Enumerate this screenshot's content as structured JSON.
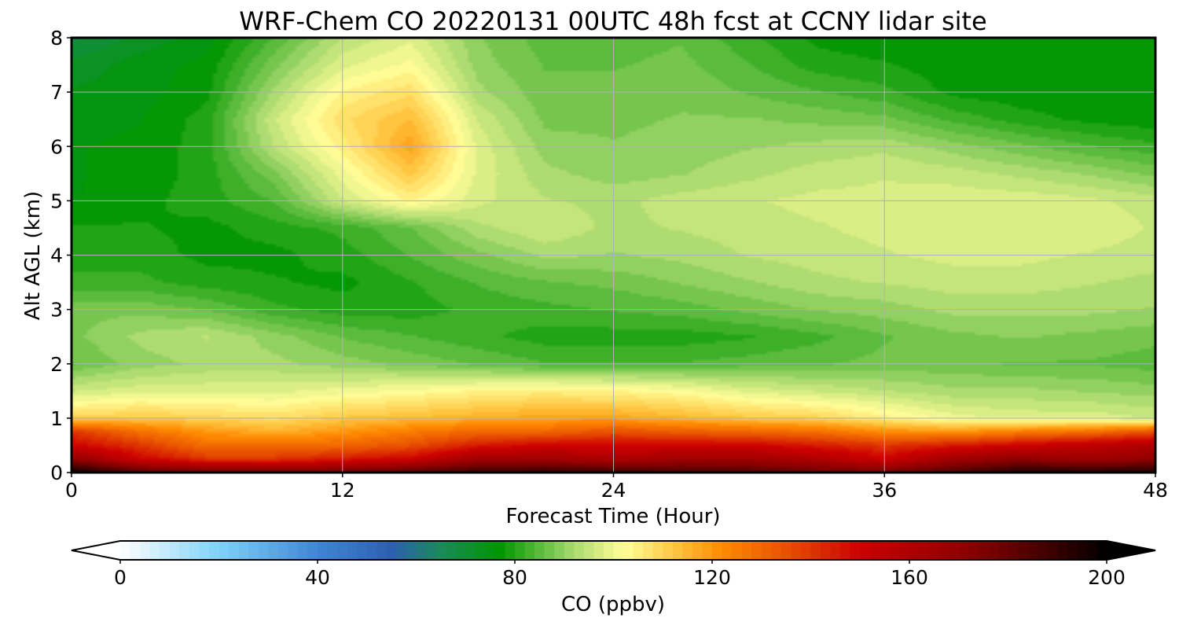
{
  "chart_data": {
    "type": "heatmap",
    "title": "WRF-Chem CO  20220131 00UTC 48h fcst at CCNY lidar site",
    "xlabel": "Forecast Time (Hour)",
    "ylabel": "Alt AGL (km)",
    "xlim": [
      0,
      48
    ],
    "ylim": [
      0,
      8
    ],
    "xticks": [
      "0",
      "12",
      "24",
      "36",
      "48"
    ],
    "yticks": [
      "0",
      "1",
      "2",
      "3",
      "4",
      "5",
      "6",
      "7",
      "8"
    ],
    "grid": true,
    "z_units": "ppbv",
    "x": [
      0,
      3,
      6,
      9,
      12,
      15,
      18,
      21,
      24,
      27,
      30,
      33,
      36,
      39,
      42,
      45,
      48
    ],
    "y": [
      0,
      0.25,
      0.5,
      0.75,
      1,
      1.5,
      2,
      2.5,
      3,
      3.5,
      4,
      4.5,
      5,
      5.5,
      6,
      6.5,
      7,
      7.5,
      8
    ],
    "z": [
      [
        200,
        185,
        180,
        178,
        180,
        185,
        190,
        192,
        190,
        188,
        185,
        180,
        178,
        185,
        195,
        195,
        195
      ],
      [
        170,
        150,
        140,
        140,
        145,
        150,
        165,
        165,
        160,
        165,
        165,
        160,
        150,
        165,
        170,
        165,
        170
      ],
      [
        150,
        140,
        128,
        128,
        130,
        135,
        145,
        150,
        150,
        150,
        150,
        145,
        140,
        145,
        150,
        155,
        160
      ],
      [
        140,
        128,
        120,
        116,
        120,
        125,
        130,
        130,
        135,
        132,
        130,
        128,
        122,
        120,
        125,
        128,
        135
      ],
      [
        110,
        112,
        110,
        108,
        112,
        114,
        116,
        118,
        118,
        115,
        112,
        110,
        105,
        100,
        98,
        98,
        96
      ],
      [
        96,
        98,
        98,
        98,
        100,
        102,
        104,
        105,
        104,
        102,
        98,
        96,
        94,
        92,
        92,
        91,
        90
      ],
      [
        86,
        90,
        92,
        92,
        90,
        88,
        86,
        84,
        84,
        84,
        85,
        86,
        87,
        87,
        86,
        86,
        85
      ],
      [
        88,
        92,
        94,
        90,
        86,
        84,
        82,
        80,
        80,
        80,
        81,
        83,
        86,
        88,
        89,
        88,
        87
      ],
      [
        88,
        88,
        86,
        82,
        80,
        80,
        82,
        83,
        84,
        85,
        87,
        89,
        90,
        92,
        92,
        92,
        91
      ],
      [
        82,
        82,
        80,
        79,
        78,
        81,
        84,
        86,
        87,
        89,
        91,
        93,
        94,
        95,
        95,
        94,
        93
      ],
      [
        80,
        80,
        78,
        78,
        80,
        84,
        88,
        92,
        91,
        92,
        94,
        95,
        96,
        97,
        97,
        96,
        95
      ],
      [
        79,
        79,
        78,
        80,
        82,
        86,
        93,
        96,
        93,
        94,
        95,
        96,
        97,
        98,
        98,
        98,
        96
      ],
      [
        76,
        78,
        80,
        84,
        96,
        104,
        97,
        94,
        93,
        95,
        96,
        97,
        97,
        98,
        98,
        97,
        95
      ],
      [
        76,
        77,
        80,
        88,
        100,
        112,
        98,
        92,
        90,
        91,
        93,
        95,
        96,
        95,
        93,
        91,
        88
      ],
      [
        76,
        77,
        80,
        94,
        105,
        118,
        98,
        90,
        89,
        90,
        91,
        92,
        93,
        90,
        87,
        84,
        82
      ],
      [
        75,
        76,
        80,
        96,
        108,
        114,
        96,
        88,
        88,
        89,
        89,
        88,
        87,
        83,
        80,
        78,
        77
      ],
      [
        74,
        75,
        78,
        92,
        104,
        108,
        92,
        87,
        87,
        88,
        86,
        84,
        82,
        78,
        77,
        77,
        77
      ],
      [
        72,
        75,
        77,
        88,
        98,
        102,
        90,
        86,
        86,
        87,
        84,
        80,
        79,
        77,
        77,
        77,
        77
      ],
      [
        68,
        72,
        75,
        84,
        94,
        98,
        89,
        85,
        85,
        86,
        82,
        78,
        77,
        77,
        77,
        77,
        77
      ]
    ],
    "colorbar": {
      "label": "CO  (ppbv)",
      "ticks": [
        "0",
        "40",
        "80",
        "120",
        "160",
        "200"
      ],
      "min": 0,
      "max": 200,
      "extend": "both",
      "stops": [
        [
          0,
          "#ffffff"
        ],
        [
          20,
          "#7ed2f8"
        ],
        [
          40,
          "#3f86d6"
        ],
        [
          55,
          "#2d5fb0"
        ],
        [
          65,
          "#1a8a5a"
        ],
        [
          77,
          "#009600"
        ],
        [
          85,
          "#5abb3c"
        ],
        [
          92,
          "#a9da6e"
        ],
        [
          99,
          "#e8f38c"
        ],
        [
          102,
          "#ffff9a"
        ],
        [
          112,
          "#ffc844"
        ],
        [
          122,
          "#ff8a00"
        ],
        [
          135,
          "#e85000"
        ],
        [
          150,
          "#cc0000"
        ],
        [
          172,
          "#8b0000"
        ],
        [
          188,
          "#400000"
        ],
        [
          200,
          "#000000"
        ]
      ]
    }
  }
}
